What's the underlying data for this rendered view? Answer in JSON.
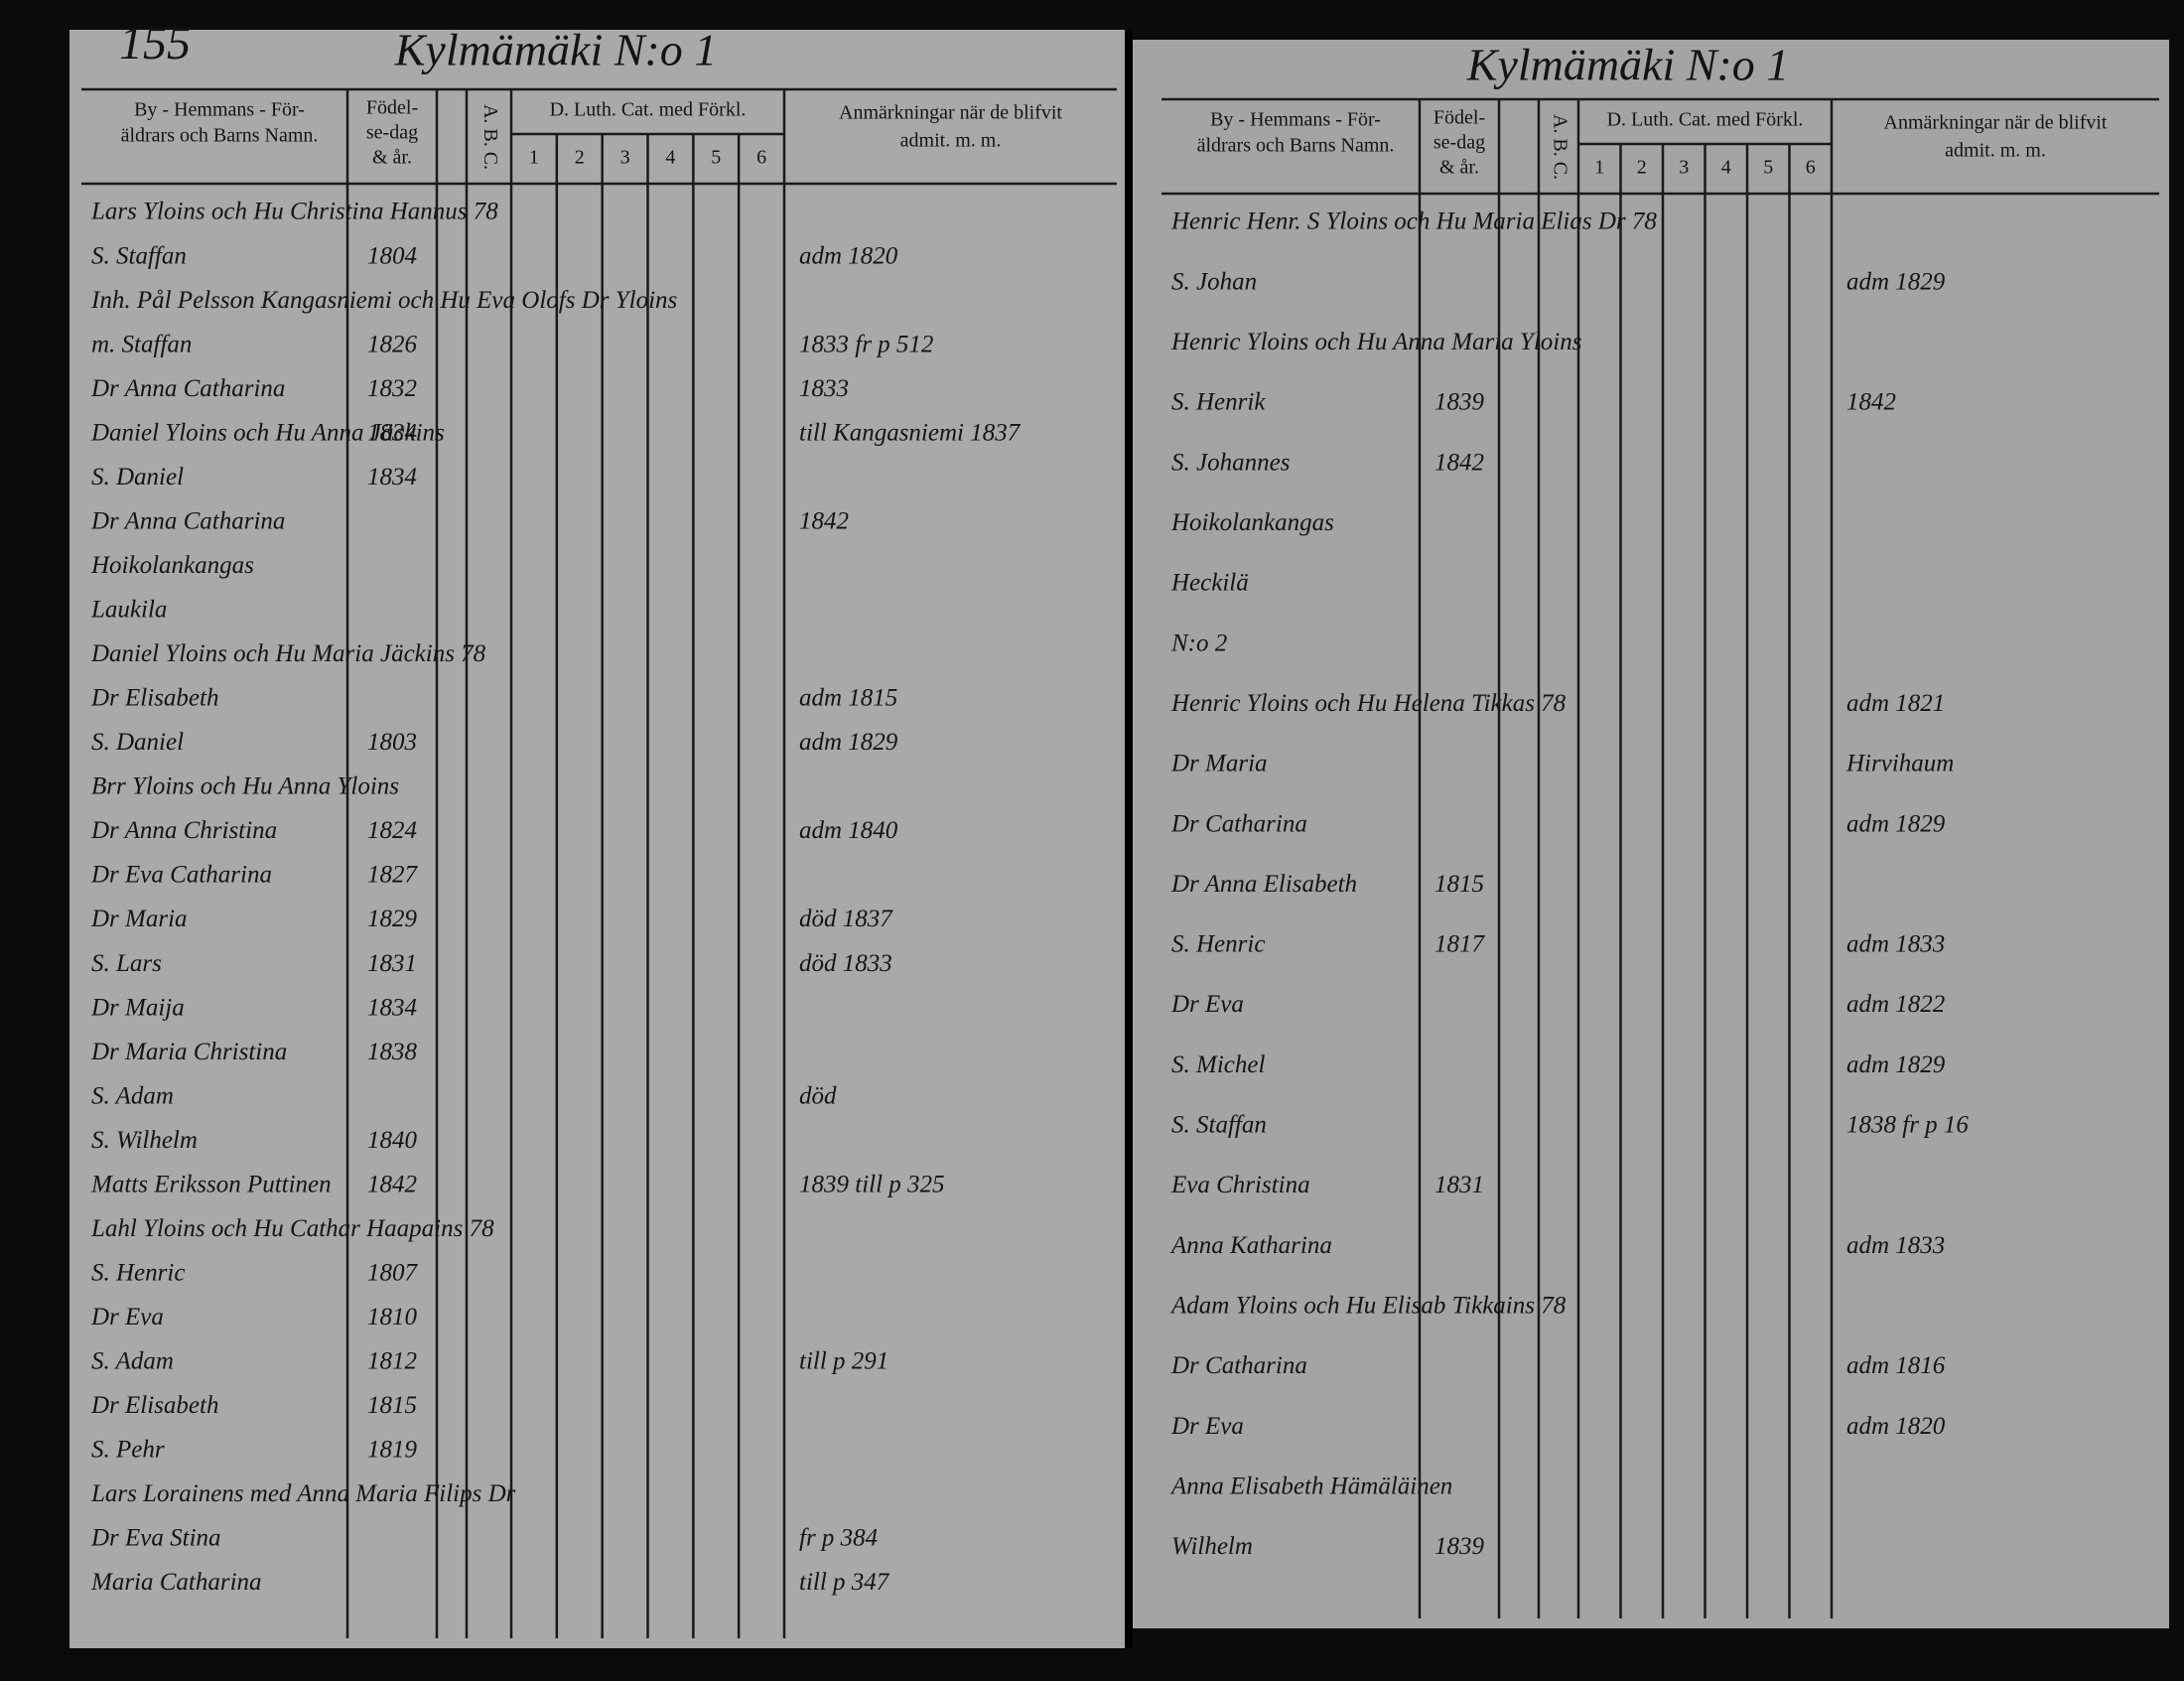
{
  "left_page": {
    "page_number": "155",
    "title": "Kylmämäki N:o 1",
    "entries": [
      {
        "name": "Lars Yloins och Hu Christina Hannus 78"
      },
      {
        "name": "S. Staffan",
        "born": "1804",
        "remark": "adm 1820"
      },
      {
        "name": "Inh. Pål Pelsson Kangasniemi och Hu Eva Olofs Dr Yloins"
      },
      {
        "name": "m. Staffan",
        "born": "1826",
        "remark": "1833 fr p 512"
      },
      {
        "name": "Dr Anna Catharina",
        "born": "1832",
        "remark": "1833"
      },
      {
        "name": "Daniel Yloins och Hu Anna Jäckins",
        "born": "1834",
        "remark": "till Kangasniemi 1837"
      },
      {
        "name": "S. Daniel",
        "born": "1834"
      },
      {
        "name": "Dr Anna Catharina",
        "remark": "1842"
      },
      {
        "name": "Hoikolankangas"
      },
      {
        "name": "Laukila"
      },
      {
        "name": "Daniel Yloins och Hu Maria Jäckins 78"
      },
      {
        "name": "Dr Elisabeth",
        "remark": "adm 1815"
      },
      {
        "name": "S. Daniel",
        "born": "1803",
        "remark": "adm 1829"
      },
      {
        "name": "Brr Yloins och Hu Anna Yloins"
      },
      {
        "name": "Dr Anna Christina",
        "born": "1824",
        "remark": "adm 1840"
      },
      {
        "name": "Dr Eva Catharina",
        "born": "1827"
      },
      {
        "name": "Dr Maria",
        "born": "1829",
        "remark": "död 1837"
      },
      {
        "name": "S. Lars",
        "born": "1831",
        "remark": "död 1833"
      },
      {
        "name": "Dr Maija",
        "born": "1834"
      },
      {
        "name": "Dr Maria Christina",
        "born": "1838"
      },
      {
        "name": "S. Adam",
        "remark": "död"
      },
      {
        "name": "S. Wilhelm",
        "born": "1840"
      },
      {
        "name": "Matts Eriksson Puttinen",
        "born": "1842",
        "remark": "1839 till p 325"
      },
      {
        "name": "Lahl Yloins och Hu Cathar Haapains 78"
      },
      {
        "name": "S. Henric",
        "born": "1807"
      },
      {
        "name": "Dr Eva",
        "born": "1810"
      },
      {
        "name": "S. Adam",
        "born": "1812",
        "remark": "till p 291"
      },
      {
        "name": "Dr Elisabeth",
        "born": "1815"
      },
      {
        "name": "S. Pehr",
        "born": "1819"
      },
      {
        "name": "Lars Lorainens med Anna Maria Filips Dr"
      },
      {
        "name": "Dr Eva Stina",
        "remark": "fr p 384"
      },
      {
        "name": "Maria Catharina",
        "remark": "till p 347"
      }
    ]
  },
  "right_page": {
    "title": "Kylmämäki N:o 1",
    "entries": [
      {
        "name": "Henric Henr. S Yloins och Hu Maria Elias Dr 78"
      },
      {
        "name": "S. Johan",
        "remark": "adm 1829"
      },
      {
        "name": "Henric Yloins och Hu Anna Maria Yloins"
      },
      {
        "name": "S. Henrik",
        "born": "1839",
        "remark": "1842"
      },
      {
        "name": "S. Johannes",
        "born": "1842"
      },
      {
        "name": "Hoikolankangas"
      },
      {
        "name": "Heckilä"
      },
      {
        "name": "N:o 2"
      },
      {
        "name": "Henric Yloins och Hu Helena Tikkas 78",
        "remark": "adm 1821"
      },
      {
        "name": "Dr Maria",
        "remark": "Hirvihaum"
      },
      {
        "name": "Dr Catharina",
        "remark": "adm 1829"
      },
      {
        "name": "Dr Anna Elisabeth",
        "born": "1815"
      },
      {
        "name": "S. Henric",
        "born": "1817",
        "remark": "adm 1833"
      },
      {
        "name": "Dr Eva",
        "remark": "adm 1822"
      },
      {
        "name": "S. Michel",
        "remark": "adm 1829"
      },
      {
        "name": "S. Staffan",
        "remark": "1838 fr p 16"
      },
      {
        "name": "Eva Christina",
        "born": "1831"
      },
      {
        "name": "Anna Katharina",
        "remark": "adm 1833"
      },
      {
        "name": "Adam Yloins och Hu Elisab Tikkains 78"
      },
      {
        "name": "Dr Catharina",
        "remark": "adm 1816"
      },
      {
        "name": "Dr Eva",
        "remark": "adm 1820"
      },
      {
        "name": "Anna Elisabeth Hämäläinen"
      },
      {
        "name": "Wilhelm",
        "born": "1839"
      }
    ]
  },
  "column_headers": {
    "name": [
      "By - Hemmans - För-",
      "äldrars och Barns Namn."
    ],
    "born": [
      "Födel-",
      "se-dag",
      "& år."
    ],
    "abc": "A. B. C.",
    "catechism": "D. Luth. Cat. med Förkl.",
    "catechism_parts": [
      "1",
      "2",
      "3",
      "4",
      "5",
      "6"
    ],
    "remarks": [
      "Anmärkningar när de blifvit",
      "admit. m. m."
    ]
  }
}
